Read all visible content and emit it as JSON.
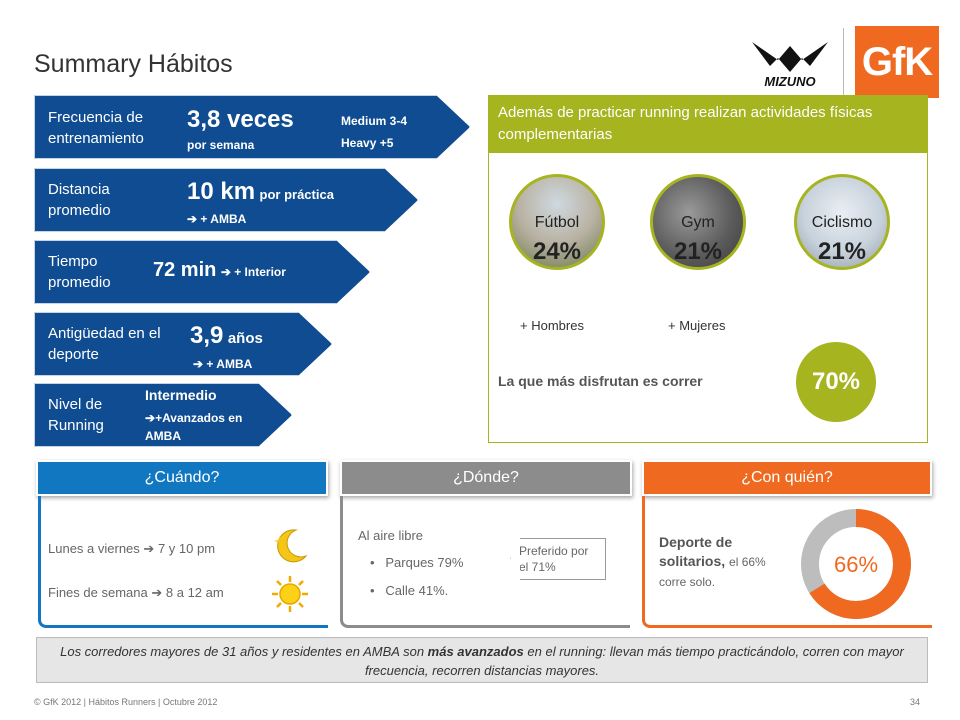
{
  "title": "Summary Hábitos",
  "logos": {
    "brand": "MIZUNO",
    "agency": "GfK"
  },
  "colors": {
    "blue": "#0f4c91",
    "green": "#a6b420",
    "orange": "#ef6a20",
    "lightblue": "#1277c1",
    "gray": "#8c8c8c"
  },
  "arrows": {
    "frecuencia": {
      "label": "Frecuencia de entrenamiento",
      "value": "3,8 veces",
      "unit": "por semana",
      "medium": "Medium 3-4",
      "heavy": "Heavy +5"
    },
    "distancia": {
      "label": "Distancia promedio",
      "value": "10 km",
      "unit": "por práctica",
      "note": "+ AMBA"
    },
    "tiempo": {
      "label": "Tiempo promedio",
      "value": "72 min",
      "note": "+ Interior"
    },
    "antiguedad": {
      "label": "Antigüedad en el deporte",
      "value": "3,9",
      "unit": "años",
      "note": "+ AMBA"
    },
    "nivel": {
      "label": "Nivel de Running",
      "value": "Intermedio",
      "note": "+Avanzados en AMBA"
    }
  },
  "activities": {
    "header": "Además de practicar running realizan actividades físicas complementarias",
    "items": [
      {
        "name": "Fútbol",
        "pct": "24%",
        "note": "+ Hombres"
      },
      {
        "name": "Gym",
        "pct": "21%",
        "note": "+ Mujeres"
      },
      {
        "name": "Ciclismo",
        "pct": "21%",
        "note": ""
      }
    ],
    "enjoy_text": "La que más disfrutan es correr",
    "enjoy_pct": "70%"
  },
  "cuando": {
    "tab": "¿Cuándo?",
    "weekdays": "Lunes a viernes",
    "weekdays_time": "7 y 10 pm",
    "weekend": "Fines de semana",
    "weekend_time": "8 a 12 am"
  },
  "donde": {
    "tab": "¿Dónde?",
    "intro": "Al aire libre",
    "items": [
      "Parques 79%",
      "Calle 41%."
    ],
    "callout": "Preferido por el 71%"
  },
  "con_quien": {
    "tab": "¿Con quién?",
    "text_bold": "Deporte de solitarios,",
    "text_rest": "el 66% corre solo.",
    "pct": "66%",
    "fraction": 0.66
  },
  "quote": {
    "part1": "Los corredores mayores de 31 años y residentes en AMBA son ",
    "bold": "más avanzados",
    "part2": " en el running: llevan más tiempo practicándolo, corren con mayor frecuencia, recorren distancias mayores."
  },
  "footer": {
    "text": "© GfK 2012 | Hábitos Runners | Octubre 2012",
    "page": "34"
  }
}
